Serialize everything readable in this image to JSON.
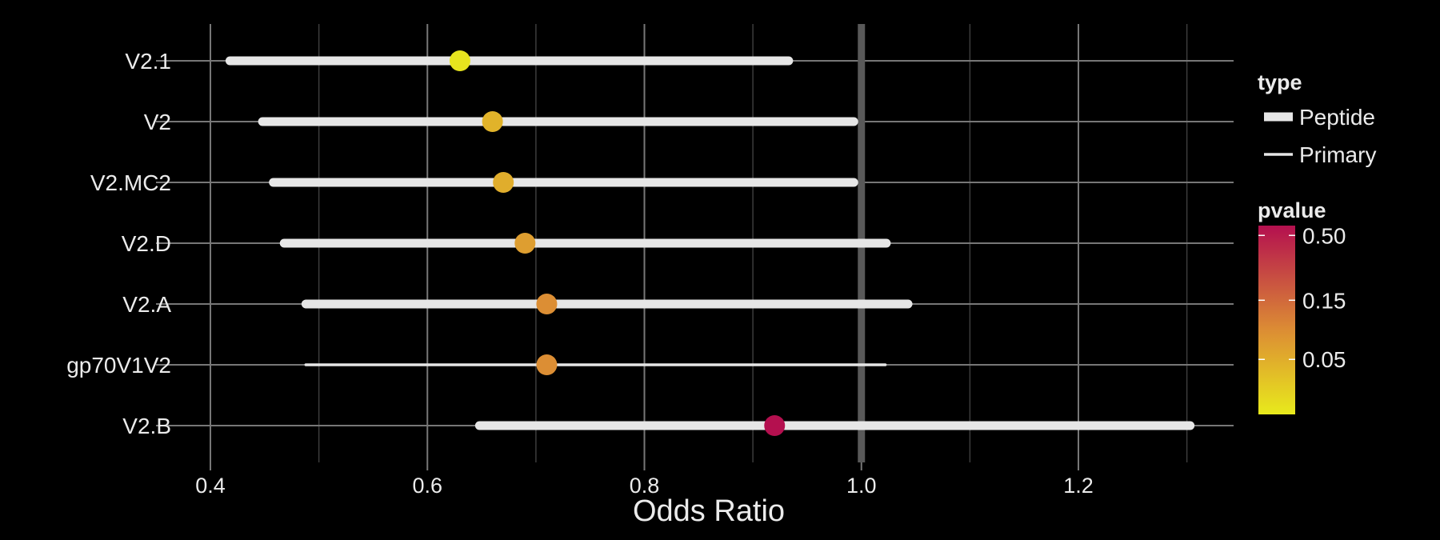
{
  "chart_data": {
    "type": "forest",
    "xlabel": "Odds Ratio",
    "xlim": [
      0.36,
      1.35
    ],
    "xticks": [
      0.4,
      0.6,
      0.8,
      1.0,
      1.2
    ],
    "xtick_labels": [
      "0.4",
      "0.6",
      "0.8",
      "1.0",
      "1.2"
    ],
    "xminor": [
      0.5,
      0.7,
      0.9,
      1.1,
      1.3
    ],
    "reference_line": 1.0,
    "grid": true,
    "rows": [
      {
        "label": "V2.1",
        "or": 0.63,
        "low": 0.418,
        "high": 0.933,
        "type": "Peptide",
        "pvalue": 0.02
      },
      {
        "label": "V2",
        "or": 0.66,
        "low": 0.448,
        "high": 0.993,
        "type": "Peptide",
        "pvalue": 0.045
      },
      {
        "label": "V2.MC2",
        "or": 0.67,
        "low": 0.458,
        "high": 0.993,
        "type": "Peptide",
        "pvalue": 0.05
      },
      {
        "label": "V2.D",
        "or": 0.69,
        "low": 0.468,
        "high": 1.023,
        "type": "Peptide",
        "pvalue": 0.065
      },
      {
        "label": "V2.A",
        "or": 0.71,
        "low": 0.488,
        "high": 1.043,
        "type": "Peptide",
        "pvalue": 0.085
      },
      {
        "label": "gp70V1V2",
        "or": 0.71,
        "low": 0.488,
        "high": 1.022,
        "type": "Primary",
        "pvalue": 0.085
      },
      {
        "label": "V2.B",
        "or": 0.92,
        "low": 0.648,
        "high": 1.303,
        "type": "Peptide",
        "pvalue": 0.65
      }
    ],
    "legend": {
      "position": "right",
      "type_title": "type",
      "type_entries": [
        "Peptide",
        "Primary"
      ],
      "pvalue_title": "pvalue",
      "pvalue_ticks": [
        0.5,
        0.15,
        0.05
      ],
      "pvalue_tick_labels": [
        "0.50",
        "0.15",
        "0.05"
      ],
      "pvalue_range": [
        0.018,
        0.6
      ],
      "pvalue_scale": "log"
    },
    "colors": {
      "background": "#000000",
      "grid_major": "#777777",
      "grid_minor": "#3c3c3c",
      "reference_line": "#595959",
      "interval": "#e6e6e6",
      "text": "#ebebeb",
      "gradient_low": "#e8ea1c",
      "gradient_mid": "#dc8c34",
      "gradient_high": "#b4104f"
    }
  }
}
